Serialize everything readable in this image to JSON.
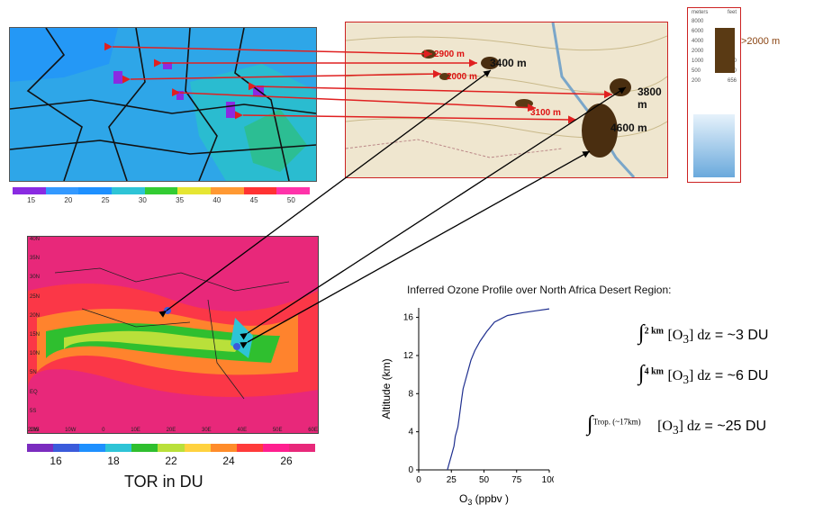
{
  "top_map": {
    "colorbar_ticks": [
      "15",
      "20",
      "25",
      "30",
      "35",
      "40",
      "45",
      "50"
    ],
    "colorbar_colors": [
      "#8a2be2",
      "#3399ff",
      "#1e90ff",
      "#2ec4d6",
      "#33cc33",
      "#e6e633",
      "#ff9933",
      "#ff3333",
      "#ff33aa"
    ]
  },
  "topo_map": {
    "elevations": [
      {
        "label": "2900 m",
        "style": "red"
      },
      {
        "label": "2000 m",
        "style": "red"
      },
      {
        "label": "3400 m",
        "style": "black"
      },
      {
        "label": "3100 m",
        "style": "red"
      },
      {
        "label": "3800 m",
        "style": "black"
      },
      {
        "label": "4600 m",
        "style": "black"
      }
    ]
  },
  "elevation_legend": {
    "header_left": "meters",
    "header_right": "feet",
    "rows_left": [
      "8000",
      "6000",
      "4000",
      "2000",
      "1000",
      "500",
      "200"
    ],
    "rows_right": [
      "",
      "",
      "",
      "",
      "3280",
      "1640",
      "656"
    ],
    "threshold_label": ">2000 m"
  },
  "bottom_map": {
    "lat_ticks": [
      "40N",
      "35N",
      "30N",
      "25N",
      "20N",
      "15N",
      "10N",
      "5N",
      "EQ",
      "5S",
      "10S"
    ],
    "lon_ticks": [
      "20W",
      "10W",
      "0",
      "10E",
      "20E",
      "30E",
      "40E",
      "50E",
      "60E"
    ],
    "colorbar_ticks": [
      "16",
      "18",
      "22",
      "24",
      "26"
    ],
    "colorbar_colors": [
      "#7b2cbf",
      "#3b5bdb",
      "#1e90ff",
      "#2ec4d6",
      "#2fbf2f",
      "#b9e03a",
      "#ffd23f",
      "#ff8c2a",
      "#ff3b3b",
      "#ff1f8f",
      "#e8287a"
    ],
    "caption": "TOR in DU"
  },
  "profile": {
    "title": "Inferred Ozone Profile over North Africa Desert Region:",
    "ylabel": "Altitude (km)",
    "xlabel_prefix": "O",
    "xlabel_sub": "3",
    "xlabel_suffix": " (ppbv )"
  },
  "chart_data": {
    "type": "line",
    "title": "Inferred Ozone Profile over North Africa Desert Region:",
    "xlabel": "O3 (ppbv )",
    "ylabel": "Altitude (km)",
    "xlim": [
      0,
      100
    ],
    "ylim": [
      0,
      17
    ],
    "xticks": [
      "0",
      "25",
      "50",
      "75",
      "100"
    ],
    "yticks": [
      "0",
      "4",
      "8",
      "12",
      "16"
    ],
    "grid": false,
    "series": [
      {
        "x": [
          22,
          23,
          25,
          27,
          28,
          30,
          31,
          32,
          33,
          34,
          36,
          38,
          40,
          43,
          47,
          52,
          58,
          68,
          80,
          90,
          100
        ],
        "y": [
          0,
          0.5,
          1.5,
          2.5,
          3.5,
          4.5,
          5.5,
          6.5,
          7.5,
          8.5,
          9.5,
          10.5,
          11.5,
          12.5,
          13.5,
          14.5,
          15.5,
          16.2,
          16.5,
          16.7,
          16.9
        ]
      }
    ]
  },
  "equations": [
    {
      "upper": "2 km",
      "lhs": "[O",
      "sub": "3",
      "rhs": "] dz",
      "value": " = ~3 DU"
    },
    {
      "upper": "4 km",
      "lhs": "[O",
      "sub": "3",
      "rhs": "] dz",
      "value": " = ~6 DU"
    },
    {
      "upper": "Trop. (~17km)",
      "lhs": "[O",
      "sub": "3",
      "rhs": "] dz",
      "value": " = ~25 DU"
    }
  ]
}
